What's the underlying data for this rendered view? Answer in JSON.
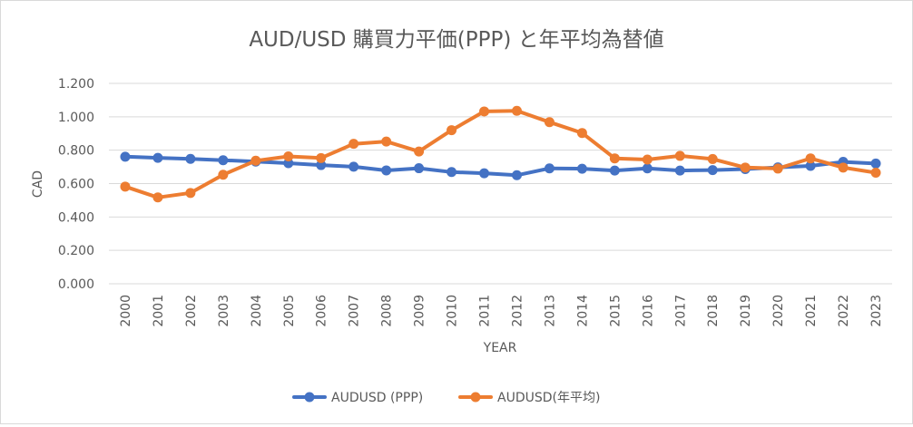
{
  "chart_data": {
    "type": "line",
    "title": "AUD/USD 購買力平価(PPP) と年平均為替値",
    "xlabel": "YEAR",
    "ylabel": "CAD",
    "ylim": [
      0,
      1.2
    ],
    "yticks": [
      "0.000",
      "0.200",
      "0.400",
      "0.600",
      "0.800",
      "1.000",
      "1.200"
    ],
    "grid": true,
    "legend_position": "bottom",
    "categories": [
      "2000",
      "2001",
      "2002",
      "2003",
      "2004",
      "2005",
      "2006",
      "2007",
      "2008",
      "2009",
      "2010",
      "2011",
      "2012",
      "2013",
      "2014",
      "2015",
      "2016",
      "2017",
      "2018",
      "2019",
      "2020",
      "2021",
      "2022",
      "2023"
    ],
    "series": [
      {
        "name": "AUDUSD (PPP)",
        "color": "#4472C4",
        "values": [
          0.761,
          0.754,
          0.748,
          0.74,
          0.732,
          0.722,
          0.711,
          0.701,
          0.679,
          0.692,
          0.669,
          0.662,
          0.65,
          0.691,
          0.689,
          0.678,
          0.691,
          0.678,
          0.681,
          0.687,
          0.697,
          0.706,
          0.73,
          0.72
        ]
      },
      {
        "name": "AUDUSD(年平均)",
        "color": "#ED7D31",
        "values": [
          0.582,
          0.517,
          0.544,
          0.653,
          0.737,
          0.763,
          0.753,
          0.838,
          0.852,
          0.792,
          0.92,
          1.032,
          1.036,
          0.968,
          0.903,
          0.751,
          0.744,
          0.766,
          0.747,
          0.696,
          0.69,
          0.751,
          0.696,
          0.665
        ]
      }
    ]
  }
}
